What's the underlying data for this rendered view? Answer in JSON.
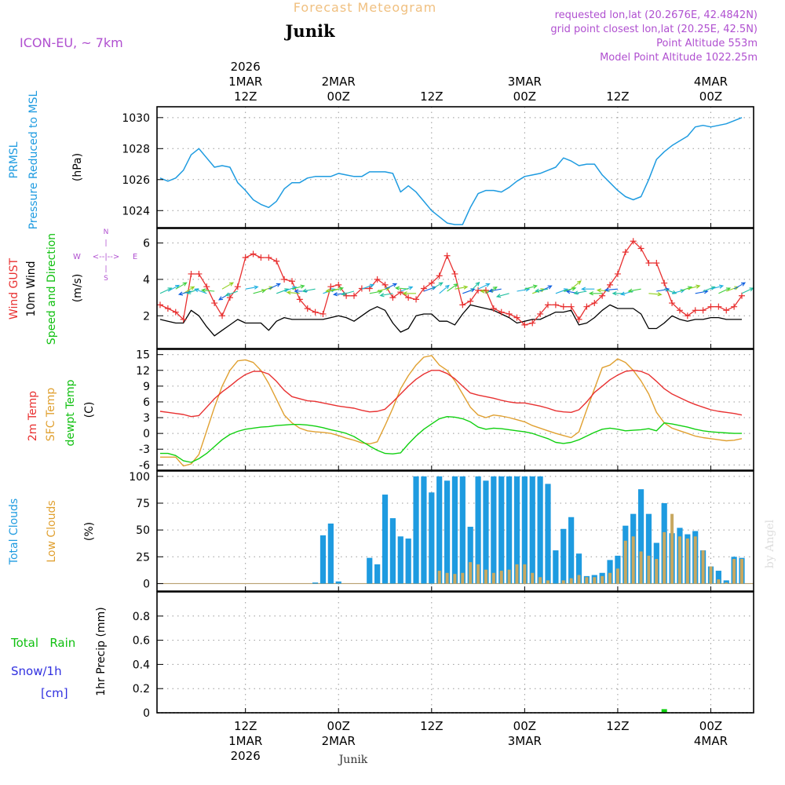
{
  "header": {
    "title": "Forecast Meteogram",
    "location": "Junik",
    "model": "ICON-EU, ~ 7km",
    "requested": "requested lon,lat (20.2676E, 42.4842N)",
    "gridpoint": "grid point closest lon,lat (20.25E, 42.5N)",
    "point_alt": "Point Altitude 553m",
    "model_alt": "Model Point Altitude 1022.25m"
  },
  "footer": {
    "location": "Junik",
    "credit": "by Angel"
  },
  "time_axis": {
    "ticks": [
      {
        "hour": 12,
        "top": [
          "2026",
          "1MAR",
          "12Z"
        ],
        "bottom": [
          "12Z",
          "1MAR",
          "2026"
        ]
      },
      {
        "hour": 24,
        "top": [
          "2MAR",
          "00Z"
        ],
        "bottom": [
          "00Z",
          "2MAR"
        ]
      },
      {
        "hour": 36,
        "top": [
          "12Z"
        ],
        "bottom": [
          "12Z"
        ]
      },
      {
        "hour": 48,
        "top": [
          "3MAR",
          "00Z"
        ],
        "bottom": [
          "00Z",
          "3MAR"
        ]
      },
      {
        "hour": 60,
        "top": [
          "12Z"
        ],
        "bottom": [
          "12Z"
        ]
      },
      {
        "hour": 72,
        "top": [
          "4MAR",
          "00Z"
        ],
        "bottom": [
          "00Z",
          "4MAR"
        ]
      }
    ]
  },
  "colors": {
    "pressure": "#1e9be0",
    "gust": "#e83030",
    "wind": "#000000",
    "t2m": "#e83030",
    "tsfc": "#e0a030",
    "tdew": "#10d010",
    "clouds_total": "#1e9be0",
    "clouds_low": "#c8a860",
    "rain": "#10d010",
    "snow": "#3030e0",
    "side_label": "#b050d0",
    "title_label": "#f0c080",
    "grid": "#999999"
  },
  "chart_data": [
    {
      "type": "line",
      "id": "pressure",
      "title": "PRMSL Pressure Reduced to MSL",
      "ylabel": "(hPa)",
      "ylim": [
        1022.9,
        1030.7
      ],
      "yticks": [
        1024,
        1026,
        1028,
        1030
      ],
      "x_hours": [
        1,
        2,
        3,
        4,
        5,
        6,
        7,
        8,
        9,
        10,
        11,
        12,
        13,
        14,
        15,
        16,
        17,
        18,
        19,
        20,
        21,
        22,
        23,
        24,
        25,
        26,
        27,
        28,
        29,
        30,
        31,
        32,
        33,
        34,
        35,
        36,
        37,
        38,
        39,
        40,
        41,
        42,
        43,
        44,
        45,
        46,
        47,
        48,
        49,
        50,
        51,
        52,
        53,
        54,
        55,
        56,
        57,
        58,
        59,
        60,
        61,
        62,
        63,
        64,
        65,
        66,
        67,
        68,
        69,
        70,
        71,
        72,
        73,
        74,
        75,
        76
      ],
      "series": [
        {
          "name": "PRMSL",
          "values": [
            1026.1,
            1025.9,
            1026.1,
            1026.6,
            1027.6,
            1028.0,
            1027.4,
            1026.8,
            1026.9,
            1026.8,
            1025.8,
            1025.3,
            1024.7,
            1024.4,
            1024.2,
            1024.6,
            1025.4,
            1025.8,
            1025.8,
            1026.1,
            1026.2,
            1026.2,
            1026.2,
            1026.4,
            1026.3,
            1026.2,
            1026.2,
            1026.5,
            1026.5,
            1026.5,
            1026.4,
            1025.2,
            1025.6,
            1025.2,
            1024.6,
            1024.0,
            1023.6,
            1023.2,
            1023.1,
            1023.1,
            1024.2,
            1025.1,
            1025.3,
            1025.3,
            1025.2,
            1025.5,
            1025.9,
            1026.2,
            1026.3,
            1026.4,
            1026.6,
            1026.8,
            1027.4,
            1027.2,
            1026.9,
            1027.0,
            1027.0,
            1026.3,
            1025.8,
            1025.3,
            1024.9,
            1024.7,
            1024.9,
            1026.0,
            1027.3,
            1027.8,
            1028.2,
            1028.5,
            1028.8,
            1029.4,
            1029.5,
            1029.4,
            1029.5,
            1029.6,
            1029.8,
            1030.0
          ]
        }
      ]
    },
    {
      "type": "line",
      "id": "wind",
      "title": "Wind GUST / 10m Wind Speed and Direction",
      "ylabel": "(m/s)",
      "ylim": [
        0.2,
        6.8
      ],
      "yticks": [
        2,
        4,
        6
      ],
      "compass": {
        "n": "N",
        "s": "S",
        "w": "W",
        "e": "E"
      },
      "x_hours": [
        1,
        2,
        3,
        4,
        5,
        6,
        7,
        8,
        9,
        10,
        11,
        12,
        13,
        14,
        15,
        16,
        17,
        18,
        19,
        20,
        21,
        22,
        23,
        24,
        25,
        26,
        27,
        28,
        29,
        30,
        31,
        32,
        33,
        34,
        35,
        36,
        37,
        38,
        39,
        40,
        41,
        42,
        43,
        44,
        45,
        46,
        47,
        48,
        49,
        50,
        51,
        52,
        53,
        54,
        55,
        56,
        57,
        58,
        59,
        60,
        61,
        62,
        63,
        64,
        65,
        66,
        67,
        68,
        69,
        70,
        71,
        72,
        73,
        74,
        75,
        76
      ],
      "series": [
        {
          "name": "Wind GUST",
          "values": [
            2.6,
            2.4,
            2.2,
            1.8,
            4.3,
            4.3,
            3.6,
            2.7,
            2.0,
            3.0,
            3.6,
            5.2,
            5.4,
            5.2,
            5.2,
            5.0,
            4.0,
            3.9,
            2.9,
            2.4,
            2.2,
            2.1,
            3.6,
            3.7,
            3.1,
            3.1,
            3.5,
            3.5,
            4.0,
            3.7,
            3.0,
            3.3,
            3.0,
            2.9,
            3.5,
            3.8,
            4.2,
            5.3,
            4.3,
            2.6,
            2.8,
            3.4,
            3.4,
            2.4,
            2.2,
            2.1,
            1.9,
            1.5,
            1.6,
            2.1,
            2.6,
            2.6,
            2.5,
            2.5,
            1.8,
            2.5,
            2.7,
            3.1,
            3.7,
            4.3,
            5.5,
            6.1,
            5.7,
            4.9,
            4.9,
            3.8,
            2.7,
            2.3,
            2.0,
            2.3,
            2.3,
            2.5,
            2.5,
            2.3,
            2.5,
            3.1
          ]
        },
        {
          "name": "10m Wind",
          "values": [
            1.8,
            1.7,
            1.6,
            1.6,
            2.3,
            2.0,
            1.4,
            0.9,
            1.2,
            1.5,
            1.8,
            1.6,
            1.6,
            1.6,
            1.2,
            1.7,
            1.9,
            1.8,
            1.8,
            1.8,
            1.8,
            1.8,
            1.9,
            2.0,
            1.9,
            1.7,
            2.0,
            2.3,
            2.5,
            2.3,
            1.6,
            1.1,
            1.3,
            2.0,
            2.1,
            2.1,
            1.7,
            1.7,
            1.5,
            2.1,
            2.6,
            2.5,
            2.4,
            2.3,
            2.1,
            1.9,
            1.6,
            1.7,
            1.8,
            1.8,
            2.0,
            2.2,
            2.2,
            2.3,
            1.5,
            1.6,
            1.9,
            2.3,
            2.6,
            2.4,
            2.4,
            2.4,
            2.1,
            1.3,
            1.3,
            1.6,
            2.0,
            1.8,
            1.7,
            1.8,
            1.8,
            1.9,
            1.9,
            1.8,
            1.8,
            1.8
          ]
        }
      ],
      "wind_direction_deg": [
        245,
        242,
        240,
        238,
        75,
        70,
        110,
        95,
        240,
        60,
        70,
        260,
        255,
        250,
        245,
        250,
        250,
        255,
        95,
        90,
        80,
        250,
        255,
        80,
        85,
        75,
        250,
        260,
        255,
        245,
        80,
        250,
        95,
        90,
        250,
        240,
        230,
        235,
        260,
        250,
        225,
        245,
        240,
        90,
        80,
        75,
        260,
        255,
        250,
        245,
        80,
        250,
        255,
        230,
        100,
        80,
        90,
        90,
        95,
        85,
        90,
        75,
        80,
        275,
        260,
        290,
        255,
        250,
        255,
        260,
        250,
        255,
        245,
        250,
        240,
        245
      ]
    },
    {
      "type": "line",
      "id": "temperature",
      "title": "2m Temp / SFC Temp / dewpt Temp",
      "ylabel": "(C)",
      "ylim": [
        -7,
        16
      ],
      "yticks": [
        -6,
        -3,
        0,
        3,
        6,
        9,
        12,
        15
      ],
      "x_hours": [
        1,
        2,
        3,
        4,
        5,
        6,
        7,
        8,
        9,
        10,
        11,
        12,
        13,
        14,
        15,
        16,
        17,
        18,
        19,
        20,
        21,
        22,
        23,
        24,
        25,
        26,
        27,
        28,
        29,
        30,
        31,
        32,
        33,
        34,
        35,
        36,
        37,
        38,
        39,
        40,
        41,
        42,
        43,
        44,
        45,
        46,
        47,
        48,
        49,
        50,
        51,
        52,
        53,
        54,
        55,
        56,
        57,
        58,
        59,
        60,
        61,
        62,
        63,
        64,
        65,
        66,
        67,
        68,
        69,
        70,
        71,
        72,
        73,
        74,
        75,
        76
      ],
      "series": [
        {
          "name": "2m Temp",
          "values": [
            4.2,
            4.0,
            3.8,
            3.6,
            3.2,
            3.4,
            5.0,
            6.6,
            7.9,
            9.0,
            10.2,
            11.2,
            11.8,
            11.8,
            11.3,
            9.9,
            8.2,
            7.0,
            6.6,
            6.2,
            6.1,
            5.8,
            5.5,
            5.2,
            5.0,
            4.8,
            4.4,
            4.1,
            4.2,
            4.6,
            6.0,
            7.5,
            9.0,
            10.3,
            11.3,
            12.0,
            12.0,
            11.4,
            10.4,
            9.0,
            7.7,
            7.3,
            7.0,
            6.7,
            6.3,
            6.0,
            5.8,
            5.8,
            5.5,
            5.2,
            4.8,
            4.3,
            4.1,
            4.0,
            4.5,
            6.0,
            7.8,
            9.0,
            10.2,
            11.1,
            11.8,
            12.0,
            11.8,
            11.2,
            9.9,
            8.5,
            7.5,
            6.8,
            6.1,
            5.5,
            5.0,
            4.5,
            4.2,
            4.0,
            3.8,
            3.5
          ]
        },
        {
          "name": "SFC Temp",
          "values": [
            -4.5,
            -4.5,
            -4.5,
            -6.2,
            -5.8,
            -4.0,
            0.5,
            5.0,
            9.0,
            12.0,
            13.8,
            14.0,
            13.5,
            12.0,
            9.5,
            6.5,
            3.5,
            2.0,
            1.0,
            0.5,
            0.3,
            0.2,
            0.0,
            -0.4,
            -0.9,
            -1.3,
            -1.8,
            -2.0,
            -1.6,
            1.5,
            4.8,
            8.5,
            11.0,
            13.0,
            14.5,
            14.8,
            13.0,
            12.0,
            10.0,
            7.5,
            5.0,
            3.5,
            3.0,
            3.5,
            3.3,
            3.0,
            2.6,
            2.2,
            1.5,
            1.0,
            0.5,
            0.0,
            -0.4,
            -0.8,
            0.3,
            4.5,
            8.5,
            12.5,
            13.0,
            14.2,
            13.5,
            12.0,
            10.0,
            7.5,
            4.0,
            2.0,
            1.0,
            0.5,
            0.0,
            -0.5,
            -0.8,
            -1.0,
            -1.2,
            -1.4,
            -1.3,
            -1.0
          ]
        },
        {
          "name": "dewpt Temp",
          "values": [
            -3.8,
            -3.8,
            -4.2,
            -5.2,
            -5.5,
            -4.8,
            -3.8,
            -2.5,
            -1.2,
            -0.2,
            0.4,
            0.8,
            1.0,
            1.2,
            1.3,
            1.5,
            1.6,
            1.7,
            1.7,
            1.6,
            1.4,
            1.1,
            0.7,
            0.4,
            0.0,
            -0.6,
            -1.5,
            -2.4,
            -3.2,
            -3.8,
            -3.9,
            -3.7,
            -2.0,
            -0.5,
            0.8,
            1.8,
            2.8,
            3.2,
            3.1,
            2.8,
            2.2,
            1.2,
            0.8,
            1.0,
            0.9,
            0.7,
            0.5,
            0.3,
            0.0,
            -0.5,
            -1.0,
            -1.7,
            -1.9,
            -1.7,
            -1.2,
            -0.5,
            0.2,
            0.8,
            1.0,
            0.8,
            0.5,
            0.6,
            0.7,
            0.9,
            0.5,
            2.0,
            1.8,
            1.5,
            1.2,
            0.8,
            0.5,
            0.3,
            0.2,
            0.1,
            0.0,
            0.0
          ]
        }
      ]
    },
    {
      "type": "bar",
      "id": "clouds",
      "title": "Total Clouds / Low Clouds",
      "ylabel": "(%)",
      "ylim": [
        -7,
        105
      ],
      "yticks": [
        0,
        25,
        50,
        75,
        100
      ],
      "x_hours": [
        1,
        2,
        3,
        4,
        5,
        6,
        7,
        8,
        9,
        10,
        11,
        12,
        13,
        14,
        15,
        16,
        17,
        18,
        19,
        20,
        21,
        22,
        23,
        24,
        25,
        26,
        27,
        28,
        29,
        30,
        31,
        32,
        33,
        34,
        35,
        36,
        37,
        38,
        39,
        40,
        41,
        42,
        43,
        44,
        45,
        46,
        47,
        48,
        49,
        50,
        51,
        52,
        53,
        54,
        55,
        56,
        57,
        58,
        59,
        60,
        61,
        62,
        63,
        64,
        65,
        66,
        67,
        68,
        69,
        70,
        71,
        72,
        73,
        74,
        75,
        76
      ],
      "series": [
        {
          "name": "Total Clouds",
          "values": [
            0,
            0,
            0,
            0,
            0,
            0,
            0,
            0,
            0,
            0,
            0,
            0,
            0,
            0,
            0,
            0,
            0,
            0,
            0,
            0,
            1,
            45,
            56,
            2,
            0,
            0,
            0,
            24,
            18,
            83,
            61,
            44,
            42,
            100,
            100,
            85,
            100,
            96,
            100,
            100,
            53,
            100,
            96,
            100,
            100,
            100,
            100,
            100,
            100,
            100,
            93,
            31,
            51,
            62,
            28,
            7,
            8,
            10,
            22,
            26,
            54,
            65,
            88,
            65,
            38,
            75,
            47,
            52,
            46,
            49,
            31,
            16,
            12,
            3,
            25,
            24
          ]
        },
        {
          "name": "Low Clouds",
          "values": [
            0,
            0,
            0,
            0,
            0,
            0,
            0,
            0,
            0,
            0,
            0,
            0,
            0,
            0,
            0,
            0,
            0,
            0,
            0,
            0,
            0,
            0,
            0,
            0,
            0,
            0,
            0,
            0,
            0,
            0,
            0,
            0,
            0,
            0,
            0,
            0,
            12,
            10,
            9,
            10,
            20,
            18,
            13,
            10,
            12,
            13,
            18,
            18,
            10,
            6,
            3,
            0,
            3,
            5,
            8,
            6,
            6,
            7,
            10,
            14,
            40,
            44,
            30,
            26,
            23,
            48,
            65,
            44,
            42,
            44,
            31,
            16,
            4,
            1,
            23,
            23
          ]
        }
      ]
    },
    {
      "type": "bar",
      "id": "precip",
      "title": "Total Rain Snow/1h [cm]",
      "label_rain": "Total   Rain",
      "label_snow": "Snow/1h",
      "label_unit": "[cm]",
      "ylabel": "1hr Precip (mm)",
      "ylim": [
        0,
        1.0
      ],
      "yticks": [
        0,
        0.2,
        0.4,
        0.6,
        0.8
      ],
      "ytick_labels": [
        "0",
        "0.2",
        "0.4",
        "0.6",
        "0.8"
      ],
      "x_hours": [
        66
      ],
      "series": [
        {
          "name": "Rain",
          "values": [
            0.03
          ]
        },
        {
          "name": "Snow",
          "values": [
            0
          ]
        }
      ]
    }
  ]
}
